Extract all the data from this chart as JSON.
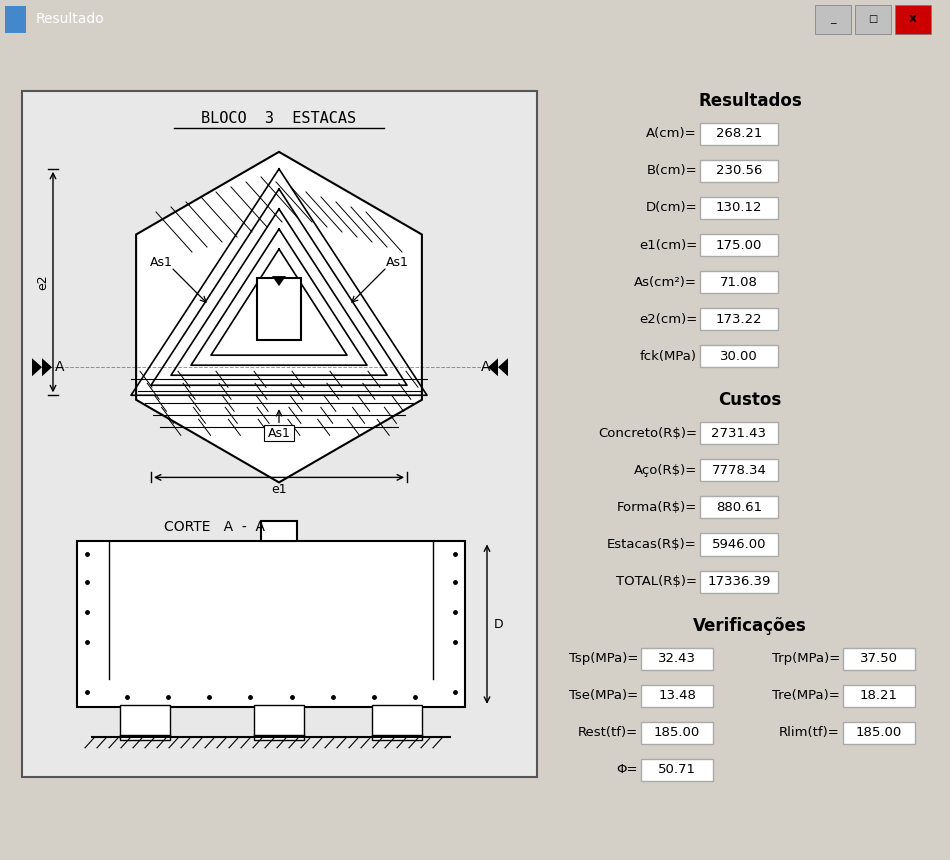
{
  "title": "Resultado",
  "bg_color": "#d4d0c8",
  "drawing_bg": "#e8e8e8",
  "box_bg": "#ffffff",
  "title_bloco": "BLOCO  3  ESTACAS",
  "corte_label": "CORTE   A  -  A",
  "resultados_title": "Resultados",
  "custos_title": "Custos",
  "verificacoes_title": "Verificações",
  "resultados": [
    {
      "label": "A(cm)=",
      "value": "268.21"
    },
    {
      "label": "B(cm)=",
      "value": "230.56"
    },
    {
      "label": "D(cm)=",
      "value": "130.12"
    },
    {
      "label": "e1(cm)=",
      "value": "175.00"
    },
    {
      "label": "As(cm²)=",
      "value": "71.08"
    },
    {
      "label": "e2(cm)=",
      "value": "173.22"
    },
    {
      "label": "fck(MPa)",
      "value": "30.00"
    }
  ],
  "custos": [
    {
      "label": "Concreto(R$)=",
      "value": "2731.43"
    },
    {
      "label": "Aço(R$)=",
      "value": "7778.34"
    },
    {
      "label": "Forma(R$)=",
      "value": "880.61"
    },
    {
      "label": "Estacas(R$)=",
      "value": "5946.00"
    },
    {
      "label": "TOTAL(R$)=",
      "value": "17336.39"
    }
  ],
  "verif_left": [
    {
      "label": "Tsp(MPa)=",
      "value": "32.43"
    },
    {
      "label": "Tse(MPa)=",
      "value": "13.48"
    },
    {
      "label": "Rest(tf)=",
      "value": "185.00"
    },
    {
      "label": "Φ=",
      "value": "50.71"
    }
  ],
  "verif_right": [
    {
      "label": "Trp(MPa)=",
      "value": "37.50"
    },
    {
      "label": "Tre(MPa)=",
      "value": "18.21"
    },
    {
      "label": "Rlim(tf)=",
      "value": "185.00"
    }
  ]
}
